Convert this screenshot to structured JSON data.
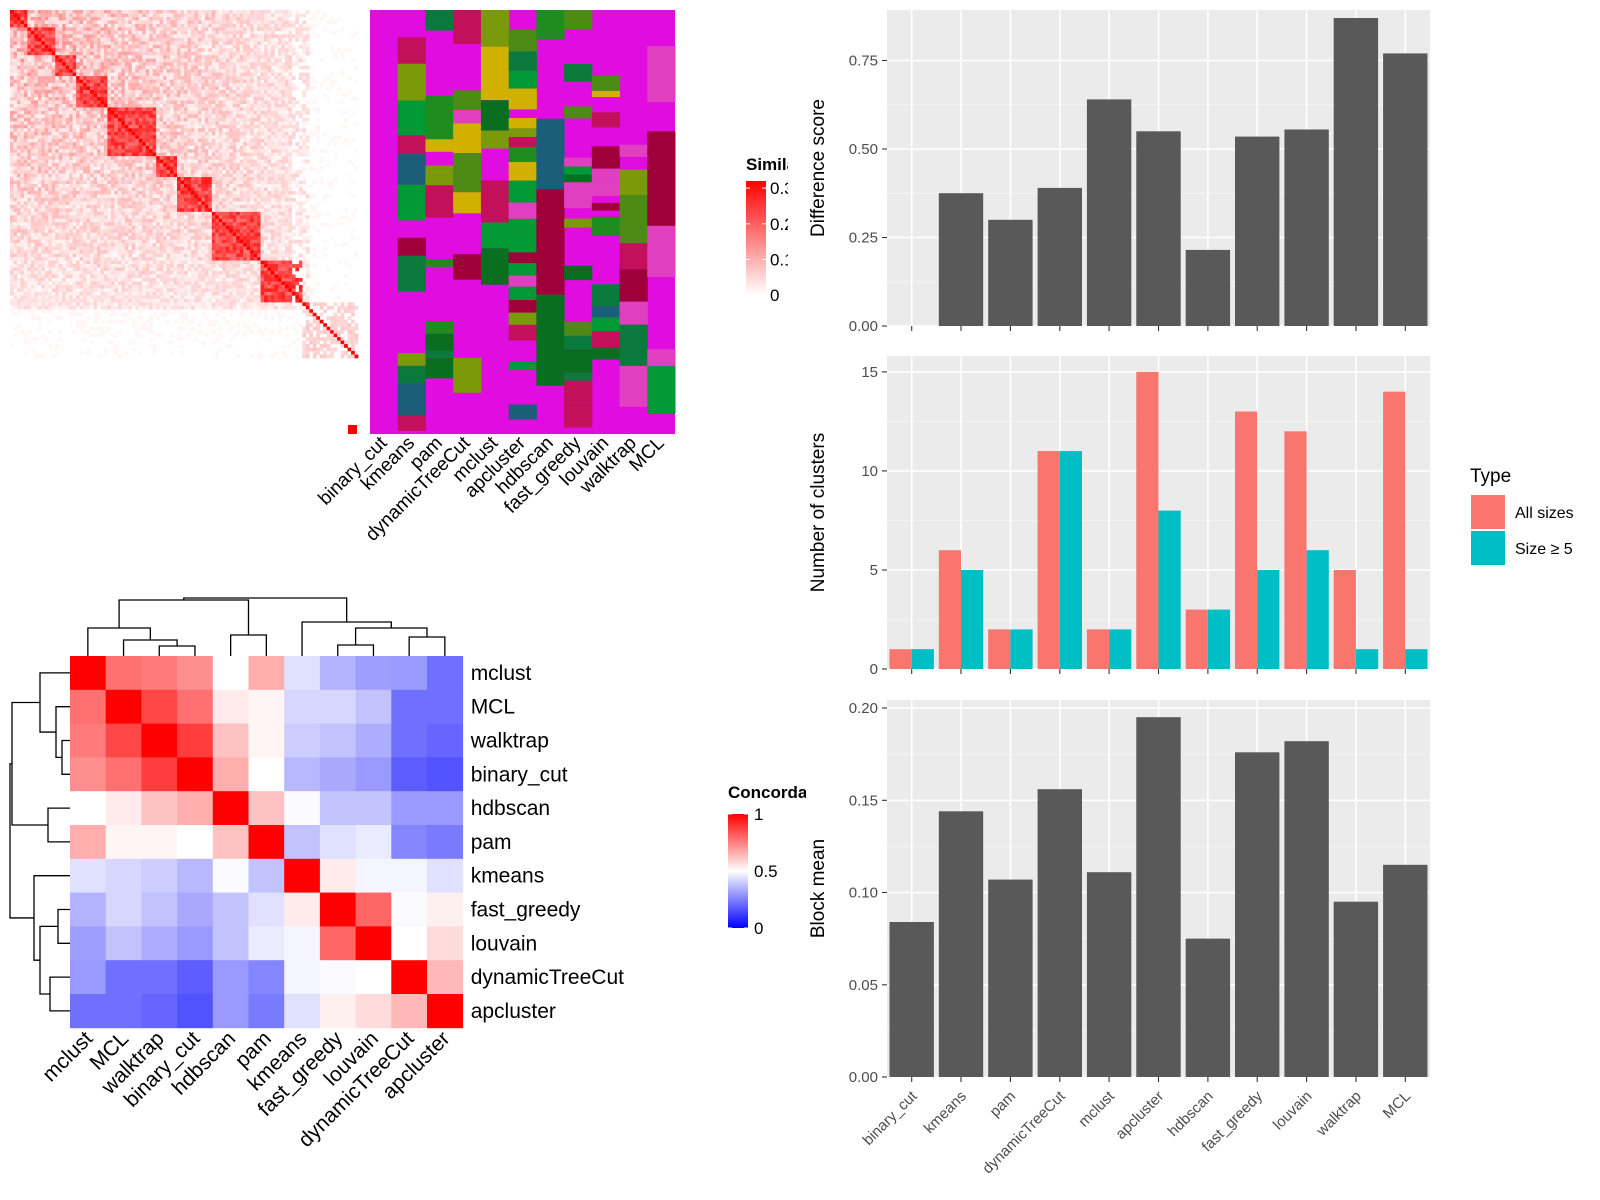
{
  "chart_data": [
    {
      "type": "heatmap",
      "panel": "similarity-matrix",
      "legend_title": "Similarity",
      "legend_ticks": [
        "0.3",
        "0.2",
        "0.1",
        "0"
      ],
      "legend_values": [
        0.3,
        0.2,
        0.1,
        0
      ],
      "colors": [
        "#ffffff",
        "#ff0000"
      ]
    },
    {
      "type": "heatmap",
      "panel": "cluster-assignments",
      "columns": [
        "binary_cut",
        "kmeans",
        "pam",
        "dynamicTreeCut",
        "mclust",
        "apcluster",
        "hdbscan",
        "fast_greedy",
        "louvain",
        "walktrap",
        "MCL"
      ],
      "background_color": "#e00ce0"
    },
    {
      "type": "heatmap",
      "panel": "concordance",
      "rows": [
        "mclust",
        "MCL",
        "walktrap",
        "binary_cut",
        "hdbscan",
        "pam",
        "kmeans",
        "fast_greedy",
        "louvain",
        "dynamicTreeCut",
        "apcluster"
      ],
      "columns": [
        "mclust",
        "MCL",
        "walktrap",
        "binary_cut",
        "hdbscan",
        "pam",
        "kmeans",
        "fast_greedy",
        "louvain",
        "dynamicTreeCut",
        "apcluster"
      ],
      "values": [
        [
          1.0,
          0.78,
          0.76,
          0.72,
          0.5,
          0.66,
          0.44,
          0.35,
          0.31,
          0.3,
          0.22
        ],
        [
          0.78,
          1.0,
          0.86,
          0.78,
          0.54,
          0.52,
          0.42,
          0.42,
          0.38,
          0.22,
          0.22
        ],
        [
          0.76,
          0.86,
          1.0,
          0.88,
          0.62,
          0.52,
          0.4,
          0.38,
          0.34,
          0.22,
          0.2
        ],
        [
          0.72,
          0.78,
          0.88,
          1.0,
          0.66,
          0.5,
          0.36,
          0.33,
          0.3,
          0.18,
          0.16
        ],
        [
          0.5,
          0.54,
          0.62,
          0.66,
          1.0,
          0.62,
          0.49,
          0.38,
          0.38,
          0.3,
          0.3
        ],
        [
          0.66,
          0.52,
          0.52,
          0.5,
          0.62,
          1.0,
          0.38,
          0.44,
          0.46,
          0.26,
          0.24
        ],
        [
          0.44,
          0.42,
          0.4,
          0.36,
          0.49,
          0.38,
          1.0,
          0.54,
          0.48,
          0.48,
          0.44
        ],
        [
          0.35,
          0.42,
          0.38,
          0.33,
          0.38,
          0.44,
          0.54,
          1.0,
          0.8,
          0.49,
          0.53
        ],
        [
          0.31,
          0.38,
          0.34,
          0.3,
          0.38,
          0.46,
          0.48,
          0.8,
          1.0,
          0.5,
          0.57
        ],
        [
          0.3,
          0.22,
          0.22,
          0.18,
          0.3,
          0.26,
          0.48,
          0.49,
          0.5,
          1.0,
          0.64
        ],
        [
          0.22,
          0.22,
          0.2,
          0.16,
          0.3,
          0.24,
          0.44,
          0.53,
          0.57,
          0.64,
          1.0
        ]
      ],
      "legend_title": "Concordance",
      "legend_ticks": [
        "1",
        "0.5",
        "0"
      ],
      "legend_values": [
        1,
        0.5,
        0
      ],
      "colors": [
        "#0000ff",
        "#ffffff",
        "#ff0000"
      ]
    },
    {
      "type": "bar",
      "panel": "difference-score",
      "categories": [
        "binary_cut",
        "kmeans",
        "pam",
        "dynamicTreeCut",
        "mclust",
        "apcluster",
        "hdbscan",
        "fast_greedy",
        "louvain",
        "walktrap",
        "MCL"
      ],
      "values": [
        0,
        0.375,
        0.3,
        0.39,
        0.64,
        0.55,
        0.215,
        0.535,
        0.555,
        0.87,
        0.77
      ],
      "ylabel": "Difference score",
      "ylim": [
        0,
        0.87
      ],
      "yticks": [
        "0.00",
        "0.25",
        "0.50",
        "0.75"
      ],
      "ytick_values": [
        0,
        0.25,
        0.5,
        0.75
      ],
      "bar_color": "#595959"
    },
    {
      "type": "bar",
      "panel": "number-of-clusters",
      "categories": [
        "binary_cut",
        "kmeans",
        "pam",
        "dynamicTreeCut",
        "mclust",
        "apcluster",
        "hdbscan",
        "fast_greedy",
        "louvain",
        "walktrap",
        "MCL"
      ],
      "series": [
        {
          "name": "All sizes",
          "values": [
            1,
            6,
            2,
            11,
            2,
            15,
            3,
            13,
            12,
            5,
            14
          ],
          "color": "#f8766d"
        },
        {
          "name": "Size ≥ 5",
          "values": [
            1,
            5,
            2,
            11,
            2,
            8,
            3,
            5,
            6,
            1,
            1
          ],
          "color": "#00bfc4"
        }
      ],
      "ylabel": "Number of clusters",
      "ylim": [
        0,
        15.4
      ],
      "yticks": [
        "0",
        "5",
        "10",
        "15"
      ],
      "ytick_values": [
        0,
        5,
        10,
        15
      ],
      "legend_title": "Type"
    },
    {
      "type": "bar",
      "panel": "block-mean",
      "categories": [
        "binary_cut",
        "kmeans",
        "pam",
        "dynamicTreeCut",
        "mclust",
        "apcluster",
        "hdbscan",
        "fast_greedy",
        "louvain",
        "walktrap",
        "MCL"
      ],
      "values": [
        0.084,
        0.144,
        0.107,
        0.156,
        0.111,
        0.195,
        0.075,
        0.176,
        0.182,
        0.095,
        0.115
      ],
      "ylabel": "Block mean",
      "ylim": [
        0,
        0.2
      ],
      "yticks": [
        "0.00",
        "0.05",
        "0.10",
        "0.15",
        "0.20"
      ],
      "ytick_values": [
        0,
        0.05,
        0.1,
        0.15,
        0.2
      ],
      "bar_color": "#595959"
    }
  ]
}
